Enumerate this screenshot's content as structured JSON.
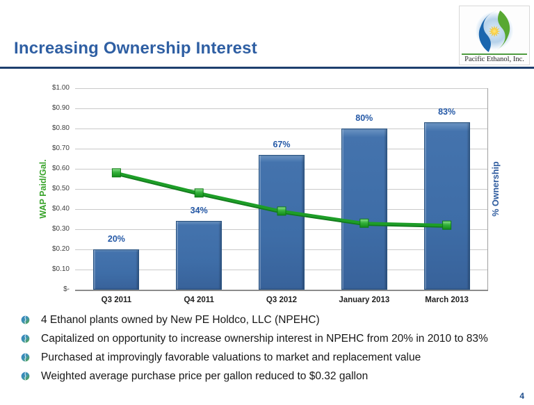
{
  "slide": {
    "title": "Increasing Ownership Interest",
    "page_number": "4"
  },
  "logo": {
    "company": "Pacific Ethanol, Inc."
  },
  "bullets": [
    "4 Ethanol plants owned by New PE Holdco, LLC (NPEHC)",
    "Capitalized on opportunity to increase ownership interest in NPEHC from 20% in 2010 to 83%",
    "Purchased at improvingly favorable valuations to market and replacement value",
    "Weighted average purchase price per gallon reduced to $0.32 gallon"
  ],
  "chart_data": {
    "type": "bar",
    "subtype": "combo-bar-line",
    "categories": [
      "Q3 2011",
      "Q4 2011",
      "Q3 2012",
      "January 2013",
      "March 2013"
    ],
    "series": [
      {
        "name": "% Ownership",
        "type": "bar",
        "axis": "right",
        "values_pct": [
          20,
          34,
          67,
          80,
          83
        ],
        "data_labels": [
          "20%",
          "34%",
          "67%",
          "80%",
          "83%"
        ],
        "bar_color": "#3e6da7",
        "label_color": "#2458a6"
      },
      {
        "name": "WAP Paid/Gal.",
        "type": "line",
        "axis": "left",
        "values_usd": [
          0.58,
          0.48,
          0.39,
          0.33,
          0.32
        ],
        "line_color": "#1e9e28",
        "marker": "square"
      }
    ],
    "left_axis": {
      "label": "WAP Paid/Gal.",
      "label_color": "#3aa42c",
      "min": 0,
      "max": 1.0,
      "step": 0.1,
      "ticks": [
        "$1.00",
        "$0.90",
        "$0.80",
        "$0.70",
        "$0.60",
        "$0.50",
        "$0.40",
        "$0.30",
        "$0.20",
        "$0.10",
        "$-"
      ]
    },
    "right_axis": {
      "label": "% Ownership",
      "label_color": "#2e5b9e",
      "min_pct": 0,
      "max_pct": 100
    },
    "grid": "horizontal-only",
    "legend": "none"
  }
}
